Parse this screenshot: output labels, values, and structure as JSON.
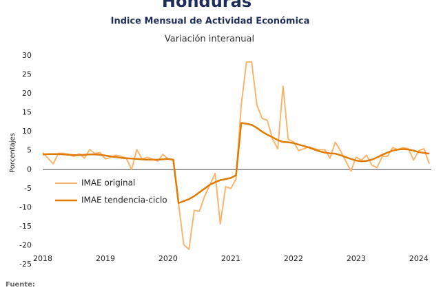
{
  "chart_data": {
    "type": "line",
    "title": "Honduras",
    "subtitle": "Indice Mensual de  Actividad Económica",
    "subtitle2": "Variación interanual",
    "ylabel": "Porcentajes",
    "source": "Fuente:",
    "x": [
      2018,
      2018.083,
      2018.167,
      2018.25,
      2018.333,
      2018.417,
      2018.5,
      2018.583,
      2018.667,
      2018.75,
      2018.833,
      2018.917,
      2019,
      2019.083,
      2019.167,
      2019.25,
      2019.333,
      2019.417,
      2019.5,
      2019.583,
      2019.667,
      2019.75,
      2019.833,
      2019.917,
      2020,
      2020.083,
      2020.167,
      2020.25,
      2020.333,
      2020.417,
      2020.5,
      2020.583,
      2020.667,
      2020.75,
      2020.833,
      2020.917,
      2021,
      2021.083,
      2021.167,
      2021.25,
      2021.333,
      2021.417,
      2021.5,
      2021.583,
      2021.667,
      2021.75,
      2021.833,
      2021.917,
      2022,
      2022.083,
      2022.167,
      2022.25,
      2022.333,
      2022.417,
      2022.5,
      2022.583,
      2022.667,
      2022.75,
      2022.833,
      2022.917,
      2023,
      2023.083,
      2023.167,
      2023.25,
      2023.333,
      2023.417,
      2023.5,
      2023.583,
      2023.667,
      2023.75,
      2023.833,
      2023.917,
      2024,
      2024.083,
      2024.167
    ],
    "series": [
      {
        "name": "IMAE original",
        "color": "#f9b56e",
        "values": [
          4.5,
          3,
          1.5,
          4.3,
          4.3,
          4,
          3.5,
          4.2,
          3,
          5.3,
          4.2,
          4.5,
          2.8,
          3.2,
          3.8,
          3.5,
          3,
          0,
          5.3,
          2.8,
          3.2,
          2.8,
          2.2,
          4,
          2.8,
          2.5,
          -9,
          -19.8,
          -21,
          -10.7,
          -11,
          -7,
          -4,
          -1,
          -14.3,
          -4.5,
          -5,
          -2.5,
          17,
          28.3,
          28.4,
          17,
          13.5,
          13,
          8,
          5.5,
          22,
          8,
          7.3,
          5,
          5.5,
          6,
          5.5,
          5.2,
          5.3,
          3,
          7.2,
          5,
          2.3,
          -0.4,
          3.3,
          2.5,
          3.8,
          1.2,
          0.5,
          3.5,
          3.5,
          5.8,
          5.3,
          5.8,
          5.5,
          2.5,
          5,
          5.5,
          1.5
        ]
      },
      {
        "name": "IMAE tendencia-ciclo",
        "color": "#e07b00",
        "values": [
          4,
          4.1,
          4.1,
          4.1,
          4,
          3.9,
          3.8,
          3.8,
          3.9,
          4,
          4,
          3.9,
          3.7,
          3.5,
          3.3,
          3.1,
          3,
          2.9,
          2.8,
          2.7,
          2.6,
          2.6,
          2.6,
          2.7,
          2.8,
          2.6,
          -8.8,
          -8.3,
          -7.8,
          -7,
          -6,
          -5,
          -4,
          -3.3,
          -2.8,
          -2.5,
          -2.2,
          -1.5,
          12.3,
          12.1,
          11.8,
          11,
          10,
          9.2,
          8.5,
          7.8,
          7.3,
          7.2,
          7,
          6.6,
          6.2,
          5.8,
          5.3,
          4.8,
          4.5,
          4.3,
          4.2,
          3.8,
          3.3,
          2.8,
          2.4,
          2.2,
          2.3,
          2.6,
          3.2,
          3.9,
          4.5,
          5,
          5.3,
          5.4,
          5.3,
          5,
          4.6,
          4.4,
          4.2
        ]
      }
    ],
    "xlim": [
      2018,
      2024.2
    ],
    "xticks": [
      2018,
      2019,
      2020,
      2021,
      2022,
      2023,
      2024
    ],
    "ylim": [
      -25,
      30
    ],
    "yticks": [
      -25,
      -20,
      -15,
      -10,
      -5,
      0,
      5,
      10,
      15,
      20,
      25,
      30
    ],
    "legend": "left"
  }
}
